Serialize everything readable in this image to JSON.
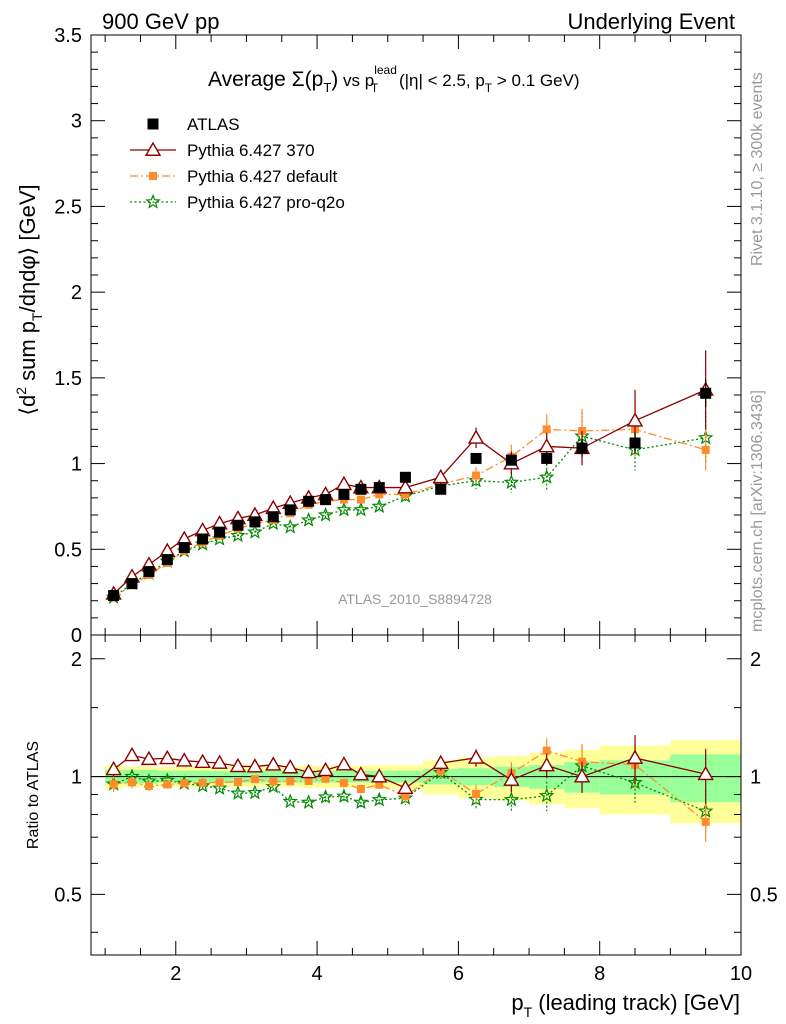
{
  "header": {
    "left": "900 GeV pp",
    "right": "Underlying Event"
  },
  "side_labels": {
    "rivet": "Rivet 3.1.10, ≥ 300k events",
    "mcplots": "mcplots.cern.ch [arXiv:1306.3436]"
  },
  "title": {
    "prefix": "Average ",
    "sigma": "Σ(p",
    "sigma_sub": "T",
    "sigma_close": ")",
    "vs": " vs p",
    "vs_sup": "lead",
    "vs_sub": "T",
    "cuts_a": " (|η| < 2.5, p",
    "cuts_sub": "T",
    "cuts_b": " > 0.1 GeV)"
  },
  "ylabel": {
    "a": "⟨d",
    "sup": "2",
    "b": " sum p",
    "sub": "T",
    "c": "/dηdφ⟩ [GeV]"
  },
  "xlabel": {
    "a": "p",
    "sub": "T",
    "b": " (leading track) [GeV]"
  },
  "ratio_ylabel": "Ratio to ATLAS",
  "watermark": "ATLAS_2010_S8894728",
  "colors": {
    "atlas": "#000000",
    "p370": "#8b0000",
    "pdefault": "#ff8c2a",
    "pq2o": "#008800",
    "band_outer": "#ffff99",
    "band_inner": "#99ff99"
  },
  "chart_data": {
    "type": "scatter",
    "xlim": [
      0.8,
      10.0
    ],
    "ylim": [
      0,
      3.5
    ],
    "ratio_ylim": [
      0.35,
      2.3
    ],
    "x_ticks": [
      2,
      4,
      6,
      8,
      10
    ],
    "x_tick_labels": [
      "2",
      "4",
      "6",
      "8",
      "10"
    ],
    "y_ticks": [
      0.5,
      1,
      1.5,
      2,
      2.5,
      3,
      3.5
    ],
    "y_tick_labels": [
      "0.5",
      "1",
      "1.5",
      "2",
      "2.5",
      "3",
      "3.5"
    ],
    "y_zero_label": "0",
    "ratio_ticks": [
      0.5,
      1,
      2
    ],
    "ratio_tick_labels": [
      "0.5",
      "1",
      "2"
    ],
    "x": [
      1.12,
      1.38,
      1.62,
      1.88,
      2.12,
      2.38,
      2.62,
      2.88,
      3.12,
      3.38,
      3.62,
      3.88,
      4.12,
      4.38,
      4.62,
      4.88,
      5.25,
      5.75,
      6.25,
      6.75,
      7.25,
      7.75,
      8.5,
      9.5
    ],
    "bin_edges": [
      1.0,
      1.25,
      1.5,
      1.75,
      2.0,
      2.25,
      2.5,
      2.75,
      3.0,
      3.25,
      3.5,
      3.75,
      4.0,
      4.25,
      4.5,
      4.75,
      5.0,
      5.5,
      6.0,
      6.5,
      7.0,
      7.5,
      8.0,
      9.0,
      10.0
    ],
    "ratio_band_inner": [
      0.04,
      0.04,
      0.04,
      0.035,
      0.035,
      0.035,
      0.035,
      0.035,
      0.035,
      0.035,
      0.035,
      0.035,
      0.035,
      0.035,
      0.035,
      0.035,
      0.035,
      0.045,
      0.05,
      0.06,
      0.07,
      0.09,
      0.1,
      0.14
    ],
    "ratio_band_outer": [
      0.07,
      0.06,
      0.06,
      0.06,
      0.06,
      0.06,
      0.06,
      0.06,
      0.06,
      0.06,
      0.06,
      0.065,
      0.065,
      0.065,
      0.065,
      0.07,
      0.07,
      0.1,
      0.12,
      0.13,
      0.15,
      0.17,
      0.2,
      0.24
    ],
    "series": [
      {
        "name": "ATLAS",
        "key": "atlas",
        "style": "data",
        "values": [
          0.23,
          0.3,
          0.37,
          0.44,
          0.51,
          0.56,
          0.6,
          0.64,
          0.66,
          0.69,
          0.73,
          0.78,
          0.79,
          0.82,
          0.85,
          0.86,
          0.92,
          0.85,
          1.03,
          1.02,
          1.03,
          1.09,
          1.12,
          1.41
        ],
        "errors": [
          0.01,
          0.01,
          0.01,
          0.01,
          0.01,
          0.01,
          0.01,
          0.01,
          0.01,
          0.01,
          0.01,
          0.01,
          0.01,
          0.01,
          0.01,
          0.01,
          0.02,
          0.02,
          0.02,
          0.03,
          0.04,
          0.05,
          0.06,
          0.08
        ]
      },
      {
        "name": "Pythia 6.427 370",
        "key": "p370",
        "style": "line",
        "values": [
          0.24,
          0.34,
          0.41,
          0.49,
          0.56,
          0.61,
          0.65,
          0.68,
          0.7,
          0.74,
          0.77,
          0.8,
          0.82,
          0.88,
          0.86,
          0.86,
          0.86,
          0.92,
          1.15,
          1.0,
          1.1,
          1.09,
          1.25,
          1.43
        ],
        "errors": [
          0.01,
          0.01,
          0.01,
          0.01,
          0.01,
          0.01,
          0.01,
          0.01,
          0.01,
          0.01,
          0.01,
          0.01,
          0.02,
          0.02,
          0.02,
          0.02,
          0.03,
          0.04,
          0.06,
          0.07,
          0.08,
          0.1,
          0.18,
          0.23
        ]
      },
      {
        "name": "Pythia 6.427 default",
        "key": "pdefault",
        "style": "dashdot",
        "values": [
          0.22,
          0.29,
          0.35,
          0.42,
          0.49,
          0.54,
          0.58,
          0.62,
          0.65,
          0.67,
          0.71,
          0.76,
          0.78,
          0.79,
          0.79,
          0.82,
          0.82,
          0.88,
          0.93,
          1.04,
          1.2,
          1.19,
          1.2,
          1.08
        ],
        "errors": [
          0.01,
          0.01,
          0.01,
          0.01,
          0.01,
          0.01,
          0.01,
          0.01,
          0.01,
          0.01,
          0.01,
          0.01,
          0.02,
          0.02,
          0.02,
          0.02,
          0.03,
          0.04,
          0.05,
          0.07,
          0.09,
          0.13,
          0.16,
          0.12
        ]
      },
      {
        "name": "Pythia 6.427 pro-q2o",
        "key": "pq2o",
        "style": "dotted",
        "values": [
          0.22,
          0.3,
          0.36,
          0.43,
          0.49,
          0.53,
          0.56,
          0.58,
          0.6,
          0.65,
          0.63,
          0.67,
          0.7,
          0.73,
          0.73,
          0.75,
          0.81,
          0.87,
          0.9,
          0.89,
          0.92,
          1.16,
          1.08,
          1.15
        ],
        "errors": [
          0.01,
          0.01,
          0.01,
          0.01,
          0.01,
          0.01,
          0.01,
          0.01,
          0.01,
          0.01,
          0.01,
          0.01,
          0.02,
          0.02,
          0.02,
          0.02,
          0.03,
          0.04,
          0.05,
          0.06,
          0.08,
          0.14,
          0.12,
          0.15
        ]
      }
    ]
  }
}
